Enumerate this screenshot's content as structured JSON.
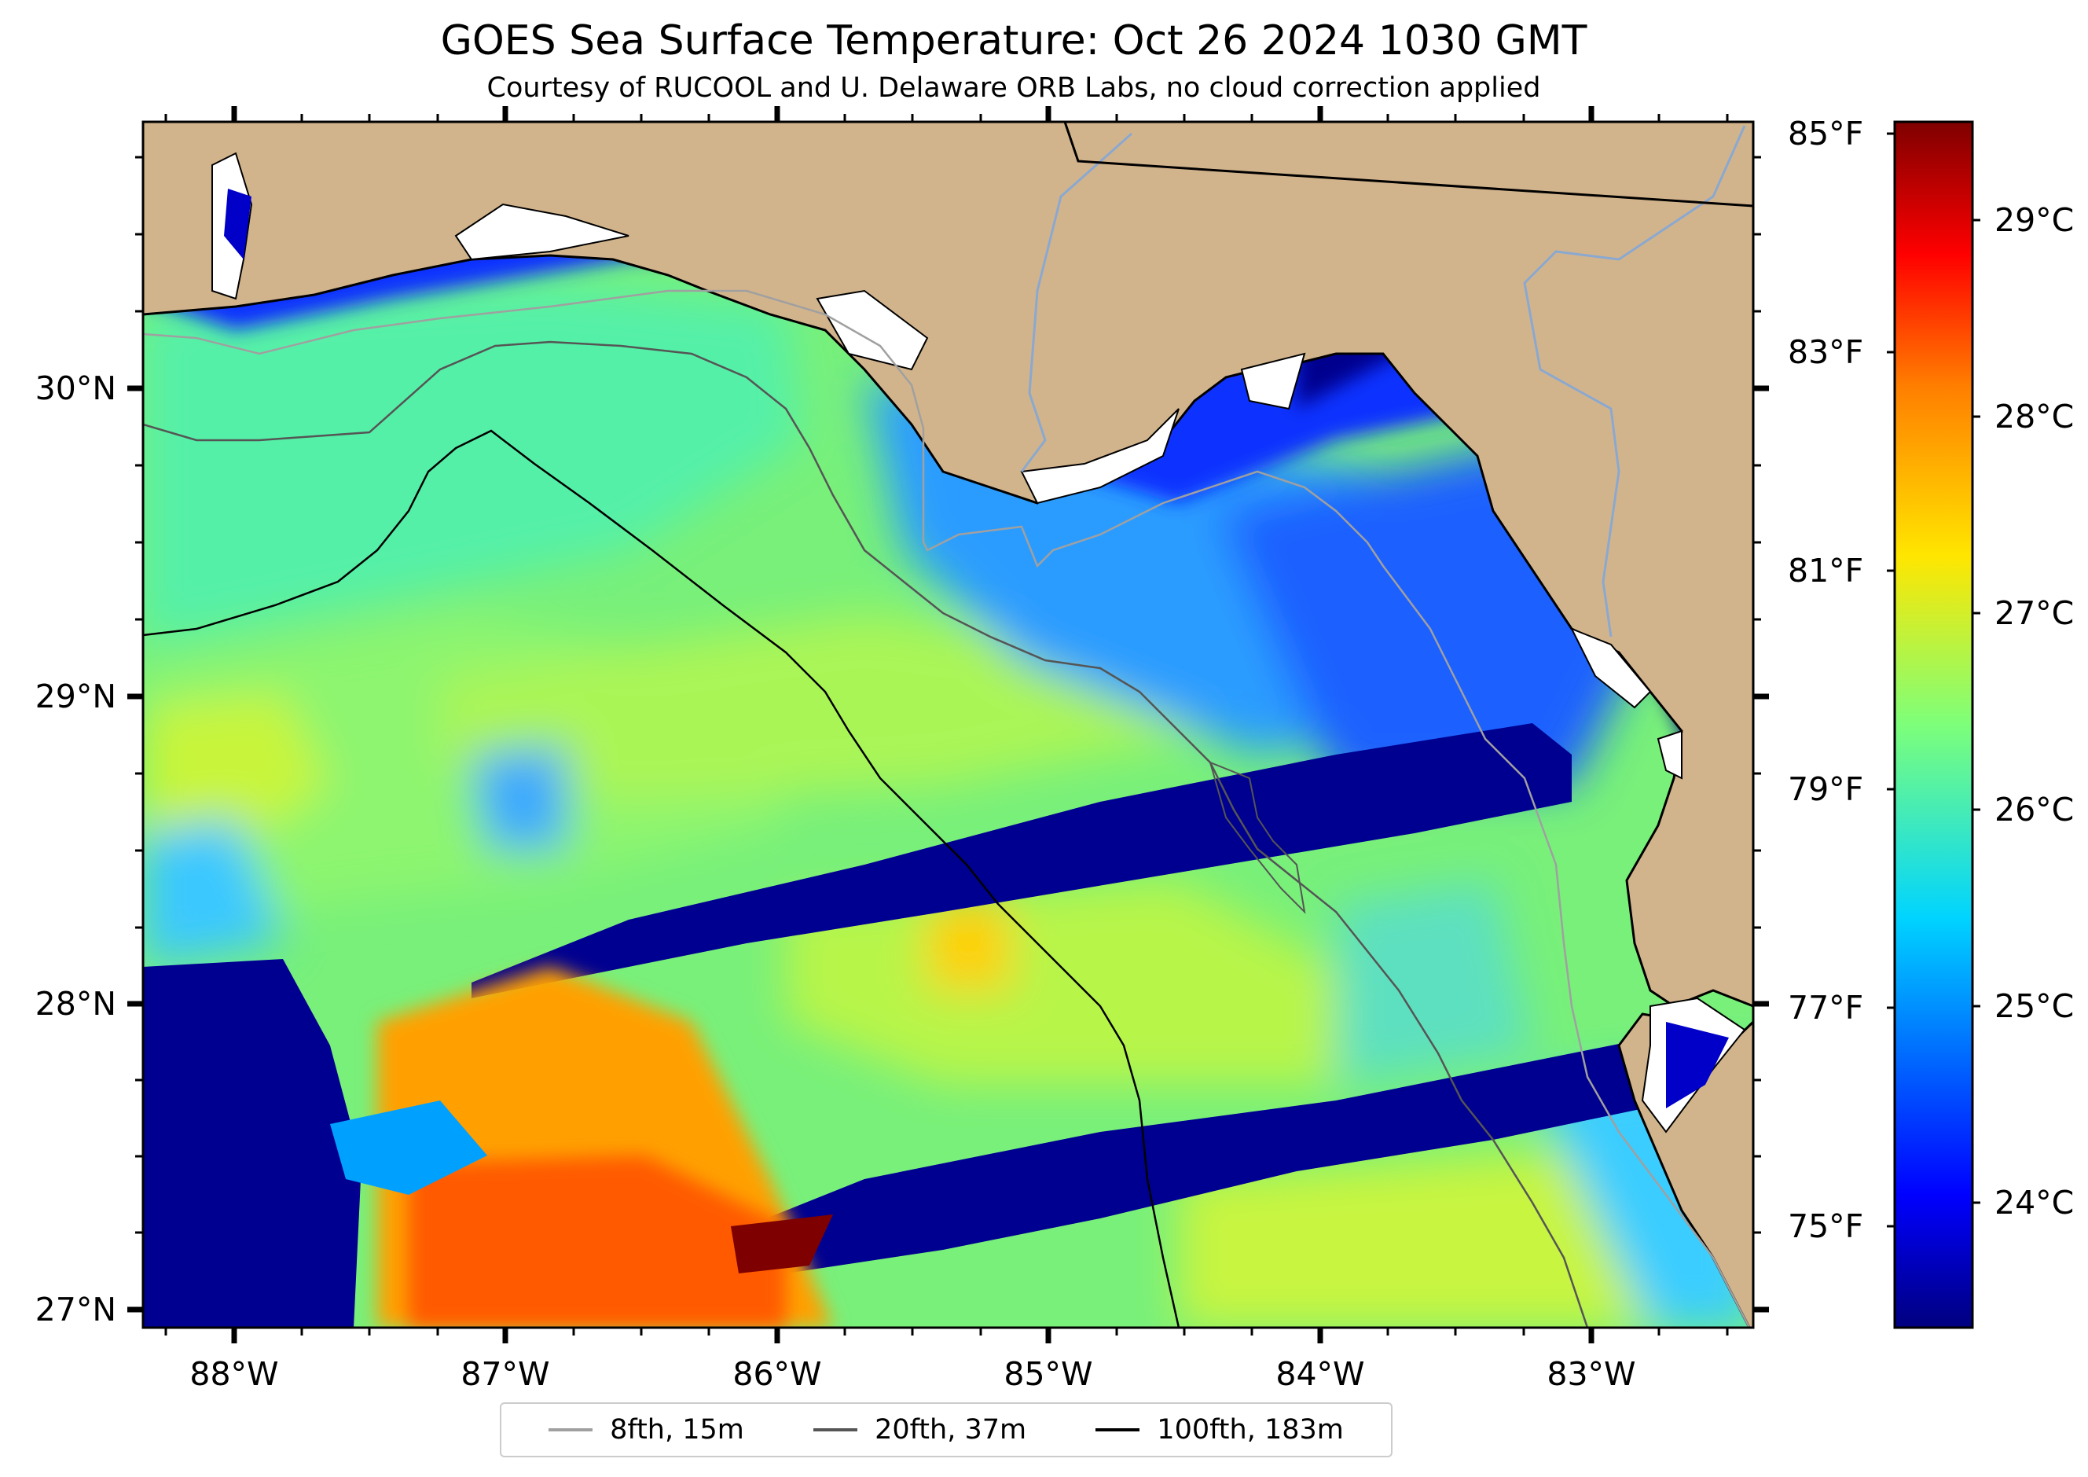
{
  "title": "GOES Sea Surface Temperature: Oct 26 2024 1030 GMT",
  "subtitle": "Courtesy of RUCOOL and U. Delaware ORB Labs, no cloud correction applied",
  "map": {
    "longitude_labels": [
      "88°W",
      "87°W",
      "86°W",
      "85°W",
      "84°W",
      "83°W"
    ],
    "latitude_labels": [
      "30°N",
      "29°N",
      "28°N",
      "27°N"
    ],
    "land_color": "#d2b48c",
    "cloud_color": "#ffffff",
    "colormap": "jet"
  },
  "colorbar": {
    "fahrenheit_labels": [
      "85°F",
      "83°F",
      "81°F",
      "79°F",
      "77°F",
      "75°F"
    ],
    "celsius_labels": [
      "29°C",
      "28°C",
      "27°C",
      "26°C",
      "25°C",
      "24°C"
    ]
  },
  "legend": {
    "items": [
      {
        "label": "8fth, 15m",
        "color": "#a0a0a0"
      },
      {
        "label": "20fth, 37m",
        "color": "#555555"
      },
      {
        "label": "100fth, 183m",
        "color": "#000000"
      }
    ]
  }
}
